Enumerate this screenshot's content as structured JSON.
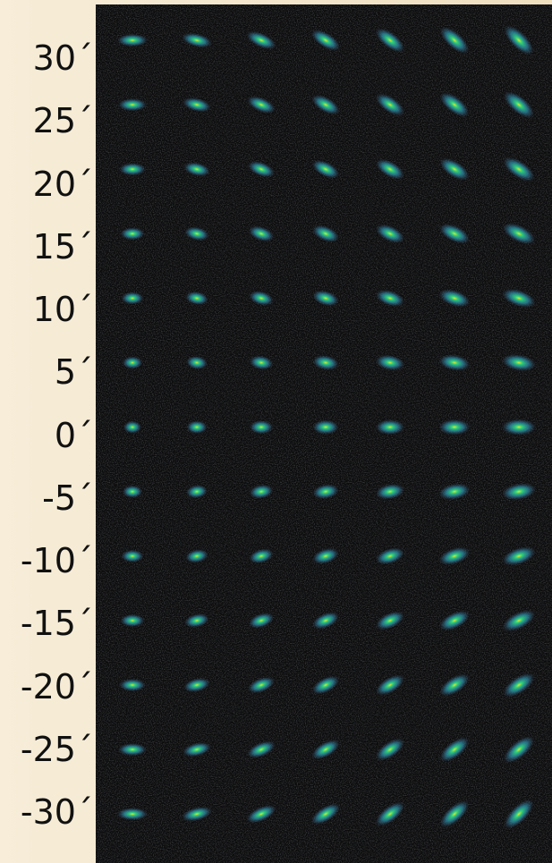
{
  "labels": [
    "30´",
    "25´",
    "20´",
    "15´",
    "10´",
    "5´",
    "0´",
    "-5´",
    "-10´",
    "-15´",
    "-20´",
    "-25´",
    "-30´"
  ]
}
